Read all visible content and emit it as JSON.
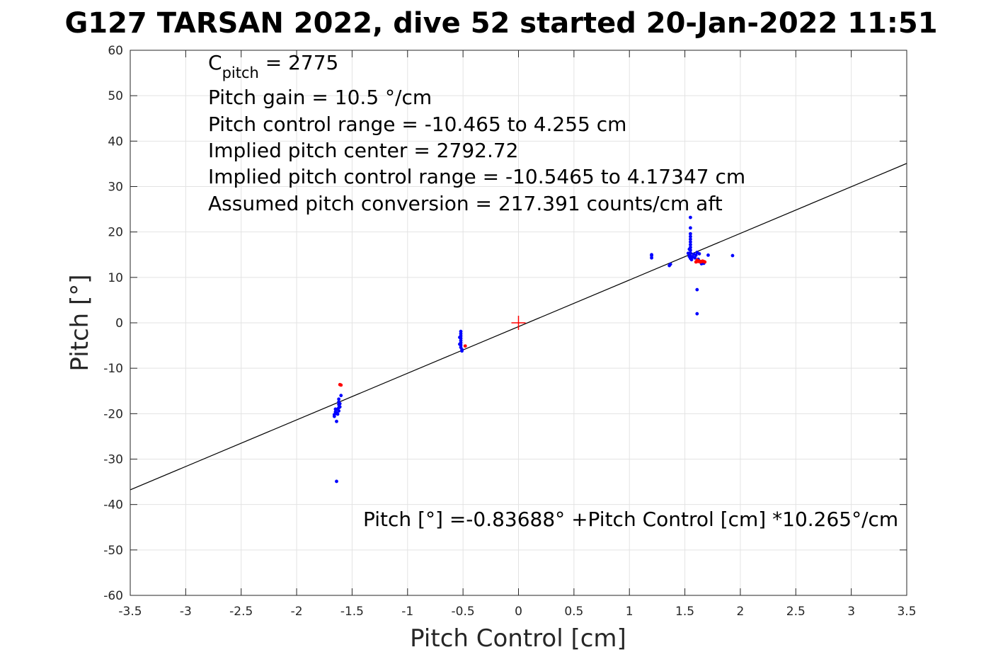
{
  "chart_data": {
    "type": "scatter",
    "title": "G127 TARSAN 2022, dive 52 started 20-Jan-2022 11:51",
    "xlabel": "Pitch Control [cm]",
    "ylabel": "Pitch [°]",
    "xlim": [
      -3.5,
      3.5
    ],
    "ylim": [
      -60,
      60
    ],
    "xticks": [
      -3.5,
      -3,
      -2.5,
      -2,
      -1.5,
      -1,
      -0.5,
      0,
      0.5,
      1,
      1.5,
      2,
      2.5,
      3,
      3.5
    ],
    "xtick_labels": [
      "-3.5",
      "-3",
      "-2.5",
      "-2",
      "-1.5",
      "-1",
      "-0.5",
      "0",
      "0.5",
      "1",
      "1.5",
      "2",
      "2.5",
      "3",
      "3.5"
    ],
    "yticks": [
      -60,
      -50,
      -40,
      -30,
      -20,
      -10,
      0,
      10,
      20,
      30,
      40,
      50,
      60
    ],
    "ytick_labels": [
      "-60",
      "-50",
      "-40",
      "-30",
      "-20",
      "-10",
      "0",
      "10",
      "20",
      "30",
      "40",
      "50",
      "60"
    ],
    "grid": true,
    "annotations": {
      "cpitch_base": "C",
      "cpitch_sub": "pitch",
      "cpitch_value": " = 2775",
      "lines": [
        "Pitch gain = 10.5 °/cm",
        "Pitch control range = -10.465 to 4.255 cm",
        "Implied pitch center = 2792.72",
        "Implied pitch control range = -10.5465 to 4.17347 cm",
        "Assumed pitch conversion = 217.391 counts/cm aft"
      ],
      "fit_equation": "Pitch [°] =-0.83688° +Pitch Control [cm] *10.265°/cm"
    },
    "fit_line": {
      "intercept": -0.83688,
      "slope": 10.265,
      "color": "#000000"
    },
    "center_marker": {
      "x": 0,
      "y": 0,
      "color": "#ff0000"
    },
    "series": [
      {
        "color": "#0000ff",
        "points": [
          [
            -1.65,
            -19.0
          ],
          [
            -1.65,
            -19.6
          ],
          [
            -1.66,
            -20.2
          ],
          [
            -1.66,
            -20.6
          ],
          [
            -1.64,
            -19.9
          ],
          [
            -1.63,
            -20.1
          ],
          [
            -1.62,
            -19.4
          ],
          [
            -1.62,
            -18.7
          ],
          [
            -1.62,
            -18.0
          ],
          [
            -1.62,
            -17.4
          ],
          [
            -1.62,
            -16.8
          ],
          [
            -1.61,
            -17.8
          ],
          [
            -1.61,
            -18.5
          ],
          [
            -1.63,
            -19.0
          ],
          [
            -1.6,
            -16.0
          ],
          [
            -1.64,
            -21.7
          ],
          [
            -1.64,
            -34.9
          ],
          [
            -0.52,
            -1.9
          ],
          [
            -0.52,
            -2.4
          ],
          [
            -0.52,
            -2.9
          ],
          [
            -0.52,
            -3.4
          ],
          [
            -0.52,
            -3.9
          ],
          [
            -0.52,
            -4.4
          ],
          [
            -0.52,
            -4.9
          ],
          [
            -0.52,
            -5.4
          ],
          [
            -0.51,
            -5.9
          ],
          [
            -0.51,
            -6.2
          ],
          [
            -0.53,
            -3.2
          ],
          [
            -0.53,
            -4.7
          ],
          [
            1.2,
            14.3
          ],
          [
            1.2,
            14.8
          ],
          [
            1.2,
            15.0
          ],
          [
            1.36,
            12.6
          ],
          [
            1.37,
            12.9
          ],
          [
            1.55,
            23.2
          ],
          [
            1.55,
            20.9
          ],
          [
            1.55,
            19.6
          ],
          [
            1.55,
            19.0
          ],
          [
            1.55,
            18.4
          ],
          [
            1.55,
            17.8
          ],
          [
            1.55,
            17.2
          ],
          [
            1.55,
            16.6
          ],
          [
            1.55,
            16.0
          ],
          [
            1.55,
            15.4
          ],
          [
            1.55,
            14.8
          ],
          [
            1.55,
            14.2
          ],
          [
            1.56,
            13.9
          ],
          [
            1.57,
            14.5
          ],
          [
            1.58,
            15.1
          ],
          [
            1.59,
            14.3
          ],
          [
            1.6,
            14.9
          ],
          [
            1.61,
            15.5
          ],
          [
            1.62,
            14.0
          ],
          [
            1.63,
            15.2
          ],
          [
            1.64,
            13.4
          ],
          [
            1.65,
            13.0
          ],
          [
            1.66,
            13.2
          ],
          [
            1.67,
            13.1
          ],
          [
            1.54,
            14.6
          ],
          [
            1.53,
            15.3
          ],
          [
            1.54,
            16.2
          ],
          [
            1.71,
            14.9
          ],
          [
            1.93,
            14.8
          ],
          [
            1.61,
            7.3
          ],
          [
            1.61,
            2.0
          ]
        ]
      },
      {
        "color": "#ff0000",
        "points": [
          [
            -1.6,
            -13.7
          ],
          [
            -1.61,
            -13.6
          ],
          [
            -0.48,
            -5.1
          ],
          [
            1.6,
            13.4
          ],
          [
            1.61,
            13.8
          ],
          [
            1.62,
            13.5
          ],
          [
            1.63,
            13.6
          ],
          [
            1.64,
            13.4
          ],
          [
            1.65,
            13.5
          ],
          [
            1.66,
            13.6
          ],
          [
            1.67,
            13.5
          ],
          [
            1.68,
            13.4
          ]
        ]
      }
    ]
  }
}
